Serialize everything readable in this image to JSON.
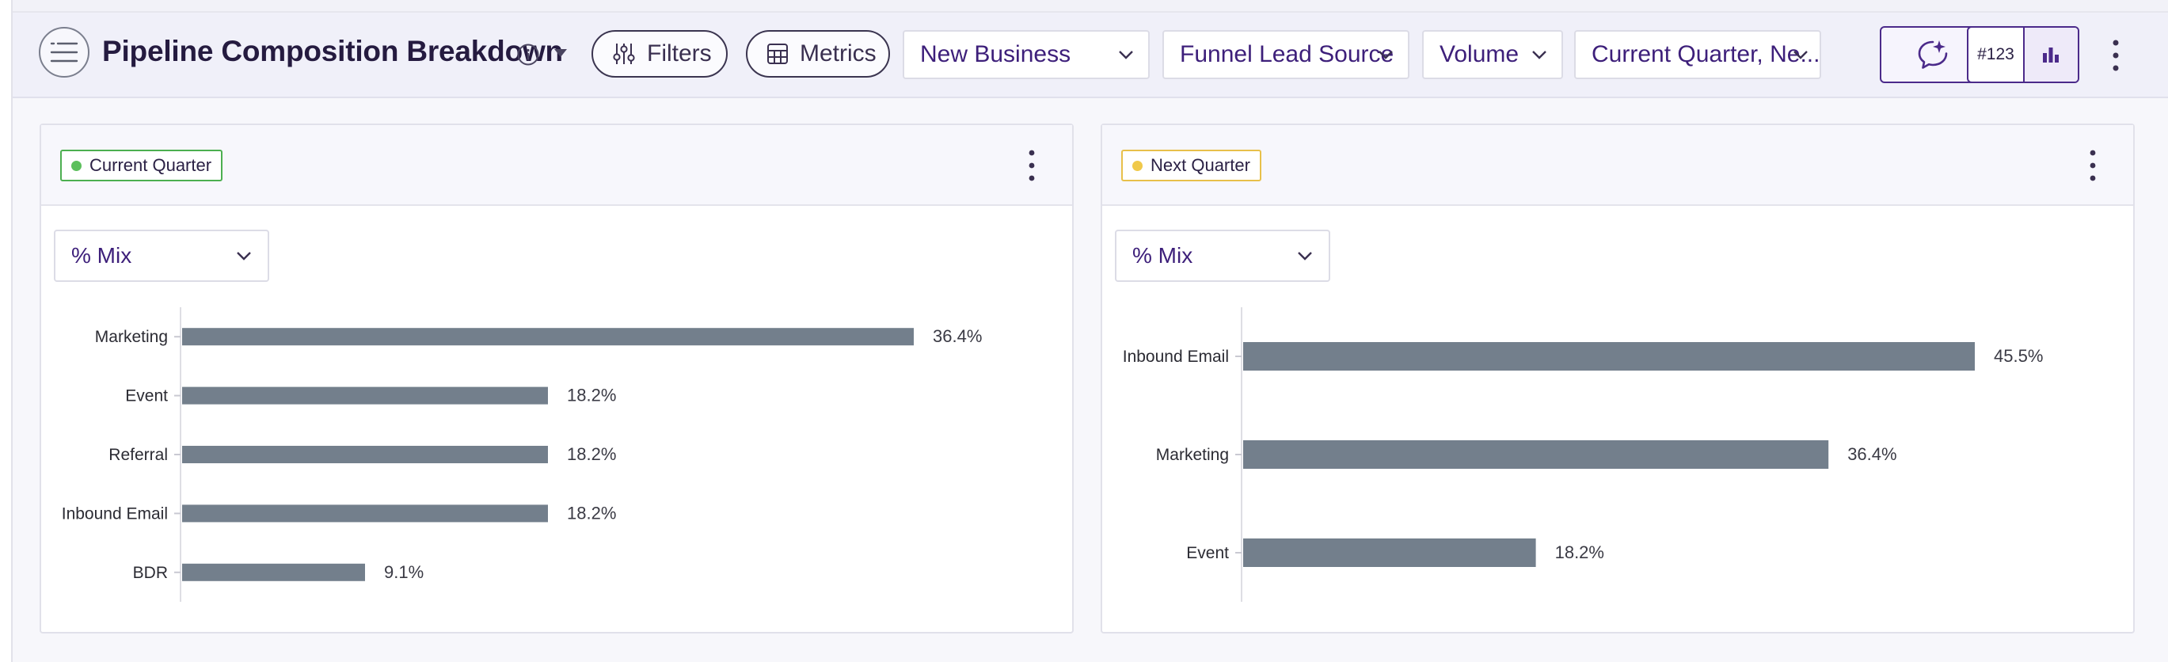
{
  "header": {
    "title": "Pipeline Composition Breakdown",
    "filters_label": "Filters",
    "metrics_label": "Metrics",
    "dropdowns": [
      {
        "value": "New Business"
      },
      {
        "value": "Funnel Lead Source"
      },
      {
        "value": "Volume"
      },
      {
        "value": "Current Quarter, Ne..."
      }
    ],
    "view_toggle": {
      "number_label": "#123"
    }
  },
  "colors": {
    "bar": "#737f8c",
    "current_dot": "#5cbf5c",
    "current_border": "#4caf50",
    "next_dot": "#f0c94a",
    "next_border": "#e8c04a",
    "accent": "#4b2a8a"
  },
  "panels": [
    {
      "tag_label": "Current Quarter",
      "mix_label": "% Mix"
    },
    {
      "tag_label": "Next Quarter",
      "mix_label": "% Mix"
    }
  ],
  "chart_data": [
    {
      "type": "bar",
      "orientation": "horizontal",
      "title": "Current Quarter",
      "categories": [
        "Marketing",
        "Event",
        "Referral",
        "Inbound Email",
        "BDR"
      ],
      "values": [
        36.4,
        18.2,
        18.2,
        18.2,
        9.1
      ],
      "value_labels": [
        "36.4%",
        "18.2%",
        "18.2%",
        "18.2%",
        "9.1%"
      ],
      "unit": "%",
      "xlim": [
        0,
        36.4
      ]
    },
    {
      "type": "bar",
      "orientation": "horizontal",
      "title": "Next Quarter",
      "categories": [
        "Inbound Email",
        "Marketing",
        "Event"
      ],
      "values": [
        45.5,
        36.4,
        18.2
      ],
      "value_labels": [
        "45.5%",
        "36.4%",
        "18.2%"
      ],
      "unit": "%",
      "xlim": [
        0,
        45.5
      ]
    }
  ]
}
